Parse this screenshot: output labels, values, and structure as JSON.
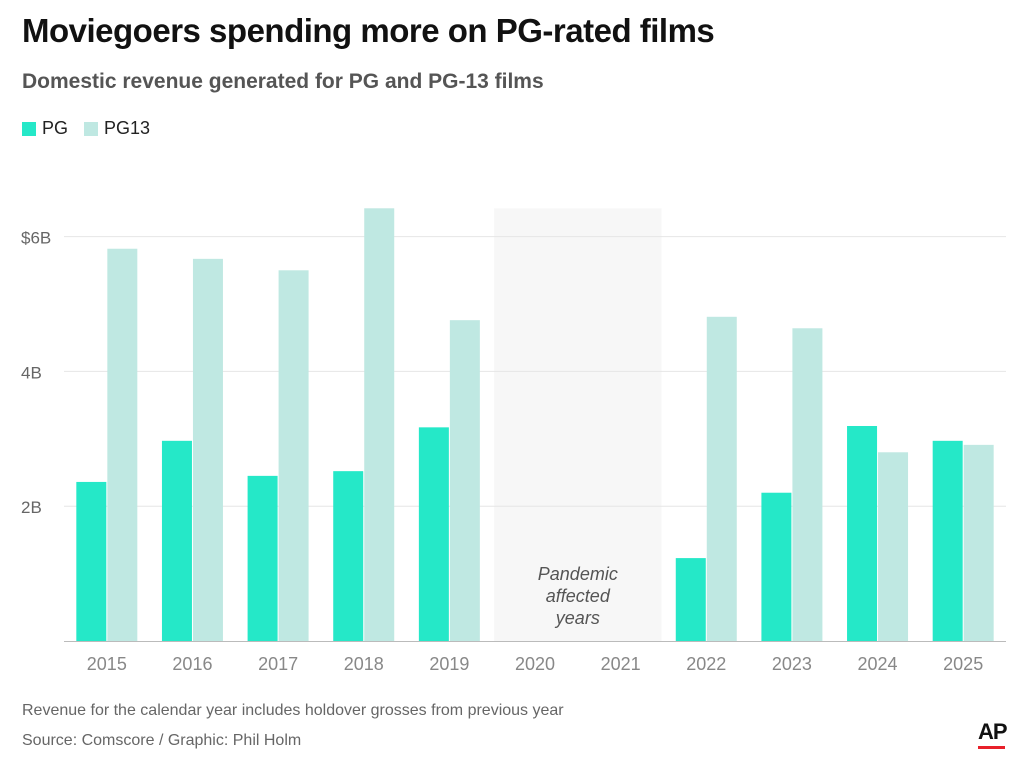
{
  "title": "Moviegoers spending more on PG-rated films",
  "subtitle": "Domestic revenue generated for PG and PG-13 films",
  "footnote": "Revenue for the calendar year includes holdover grosses from previous year",
  "source": "Source: Comscore / Graphic: Phil Holm",
  "logo": "AP",
  "chart_data": {
    "type": "bar",
    "categories": [
      "2015",
      "2016",
      "2017",
      "2018",
      "2019",
      "2020",
      "2021",
      "2022",
      "2023",
      "2024",
      "2025"
    ],
    "series": [
      {
        "name": "PG",
        "color": "#25e8c8",
        "values": [
          2.36,
          2.97,
          2.45,
          2.52,
          3.17,
          null,
          null,
          1.23,
          2.2,
          3.19,
          2.97
        ]
      },
      {
        "name": "PG13",
        "color": "#bfe8e2",
        "values": [
          5.82,
          5.67,
          5.5,
          6.42,
          4.76,
          null,
          null,
          4.81,
          4.64,
          2.8,
          2.91
        ]
      }
    ],
    "ylim": [
      0,
      6.42
    ],
    "yticks": [
      {
        "value": 2,
        "label": "2B"
      },
      {
        "value": 4,
        "label": "4B"
      },
      {
        "value": 6,
        "label": "$6B"
      }
    ],
    "unit": "billions USD",
    "grid": true,
    "legend": "top-left",
    "annotation": {
      "text_lines": [
        "Pandemic",
        "affected",
        "years"
      ],
      "range": [
        "2020",
        "2021"
      ]
    }
  }
}
